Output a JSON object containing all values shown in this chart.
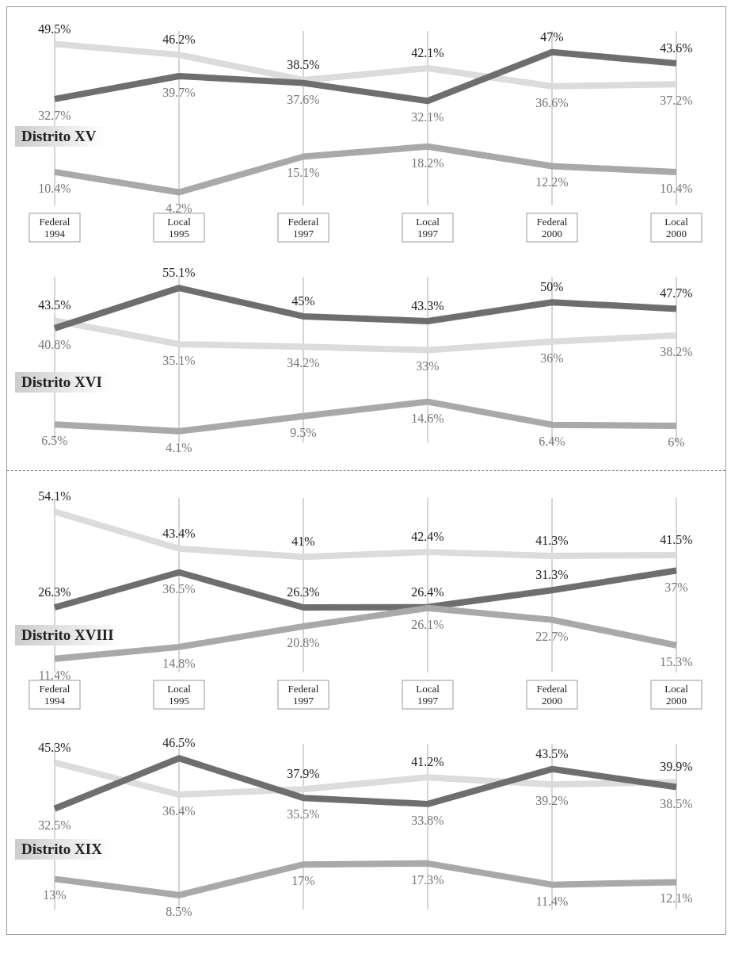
{
  "chart_data": [
    {
      "type": "line",
      "title": "Distrito XV",
      "categories": [
        "Federal 1994",
        "Local 1995",
        "Federal 1997",
        "Local 1997",
        "Federal 2000",
        "Local 2000"
      ],
      "grid": "x",
      "series": [
        {
          "color": "#dcdcdc",
          "values": [
            49.5,
            46.2,
            38.5,
            42.1,
            36.6,
            37.2
          ],
          "value_labels": [
            "49.5%",
            "46.2%",
            "38.5%",
            "42.1%",
            "36.6%",
            "37.2%"
          ]
        },
        {
          "color": "#6e6e6e",
          "values": [
            32.7,
            39.7,
            37.6,
            32.1,
            47,
            43.6
          ],
          "value_labels": [
            "32.7%",
            "39.7%",
            "37.6%",
            "32.1%",
            "47%",
            "43.6%"
          ]
        },
        {
          "color": "#a9a9a9",
          "values": [
            10.4,
            4.2,
            15.1,
            18.2,
            12.2,
            10.4
          ],
          "value_labels": [
            "10.4%",
            "4.2%",
            "15.1%",
            "18.2%",
            "12.2%",
            "10.4%"
          ]
        }
      ]
    },
    {
      "type": "line",
      "title": "Distrito XVI",
      "categories": [
        null,
        null,
        null,
        null,
        null,
        null
      ],
      "grid": "x",
      "tick_labels": false,
      "series": [
        {
          "color": "#dcdcdc",
          "values": [
            43.5,
            35.1,
            34.2,
            33,
            36,
            38.2
          ],
          "value_labels": [
            "43.5%",
            "35.1%",
            "34.2%",
            "33%",
            "36%",
            "38.2%"
          ]
        },
        {
          "color": "#6e6e6e",
          "values": [
            40.8,
            55.1,
            45,
            43.3,
            50,
            47.7
          ],
          "value_labels": [
            "40.8%",
            "55.1%",
            "45%",
            "43.3%",
            "50%",
            "47.7%"
          ]
        },
        {
          "color": "#a9a9a9",
          "values": [
            6.5,
            4.1,
            9.5,
            14.6,
            6.4,
            6
          ],
          "value_labels": [
            "6.5%",
            "4.1%",
            "9.5%",
            "14.6%",
            "6.4%",
            "6%"
          ]
        }
      ]
    },
    {
      "type": "line",
      "title": "Distrito XVIII",
      "categories": [
        "Federal 1994",
        "Local 1995",
        "Federal 1997",
        "Local 1997",
        "Federal 2000",
        "Local 2000"
      ],
      "grid": "x",
      "series": [
        {
          "color": "#dcdcdc",
          "values": [
            54.1,
            43.4,
            41,
            42.4,
            41.3,
            41.5
          ],
          "value_labels": [
            "54.1%",
            "43.4%",
            "41%",
            "42.4%",
            "41.3%",
            "41.5%"
          ]
        },
        {
          "color": "#6e6e6e",
          "values": [
            26.3,
            36.5,
            26.3,
            26.4,
            31.3,
            37
          ],
          "value_labels": [
            "26.3%",
            "36.5%",
            "26.3%",
            "26.4%",
            "31.3%",
            "37%"
          ]
        },
        {
          "color": "#a9a9a9",
          "values": [
            11.4,
            14.8,
            20.8,
            26.1,
            22.7,
            15.3
          ],
          "value_labels": [
            "11.4%",
            "14.8%",
            "20.8%",
            "26.1%",
            "22.7%",
            "15.3%"
          ]
        }
      ]
    },
    {
      "type": "line",
      "title": "Distrito XIX",
      "categories": [
        null,
        null,
        null,
        null,
        null,
        null
      ],
      "grid": "x",
      "tick_labels": false,
      "series": [
        {
          "color": "#dcdcdc",
          "values": [
            45.3,
            36.4,
            37.9,
            41.2,
            39.2,
            39.9
          ],
          "value_labels": [
            "45.3%",
            "36.4%",
            "37.9%",
            "41.2%",
            "39.2%",
            "39.9%"
          ]
        },
        {
          "color": "#6e6e6e",
          "values": [
            32.5,
            46.5,
            35.5,
            33.8,
            43.5,
            38.5
          ],
          "value_labels": [
            "32.5%",
            "46.5%",
            "35.5%",
            "33.8%",
            "43.5%",
            "38.5%"
          ]
        },
        {
          "color": "#a9a9a9",
          "values": [
            13,
            8.5,
            17,
            17.3,
            11.4,
            12.1
          ],
          "value_labels": [
            "13%",
            "8.5%",
            "17%",
            "17.3%",
            "11.4%",
            "12.1%"
          ]
        }
      ]
    }
  ]
}
